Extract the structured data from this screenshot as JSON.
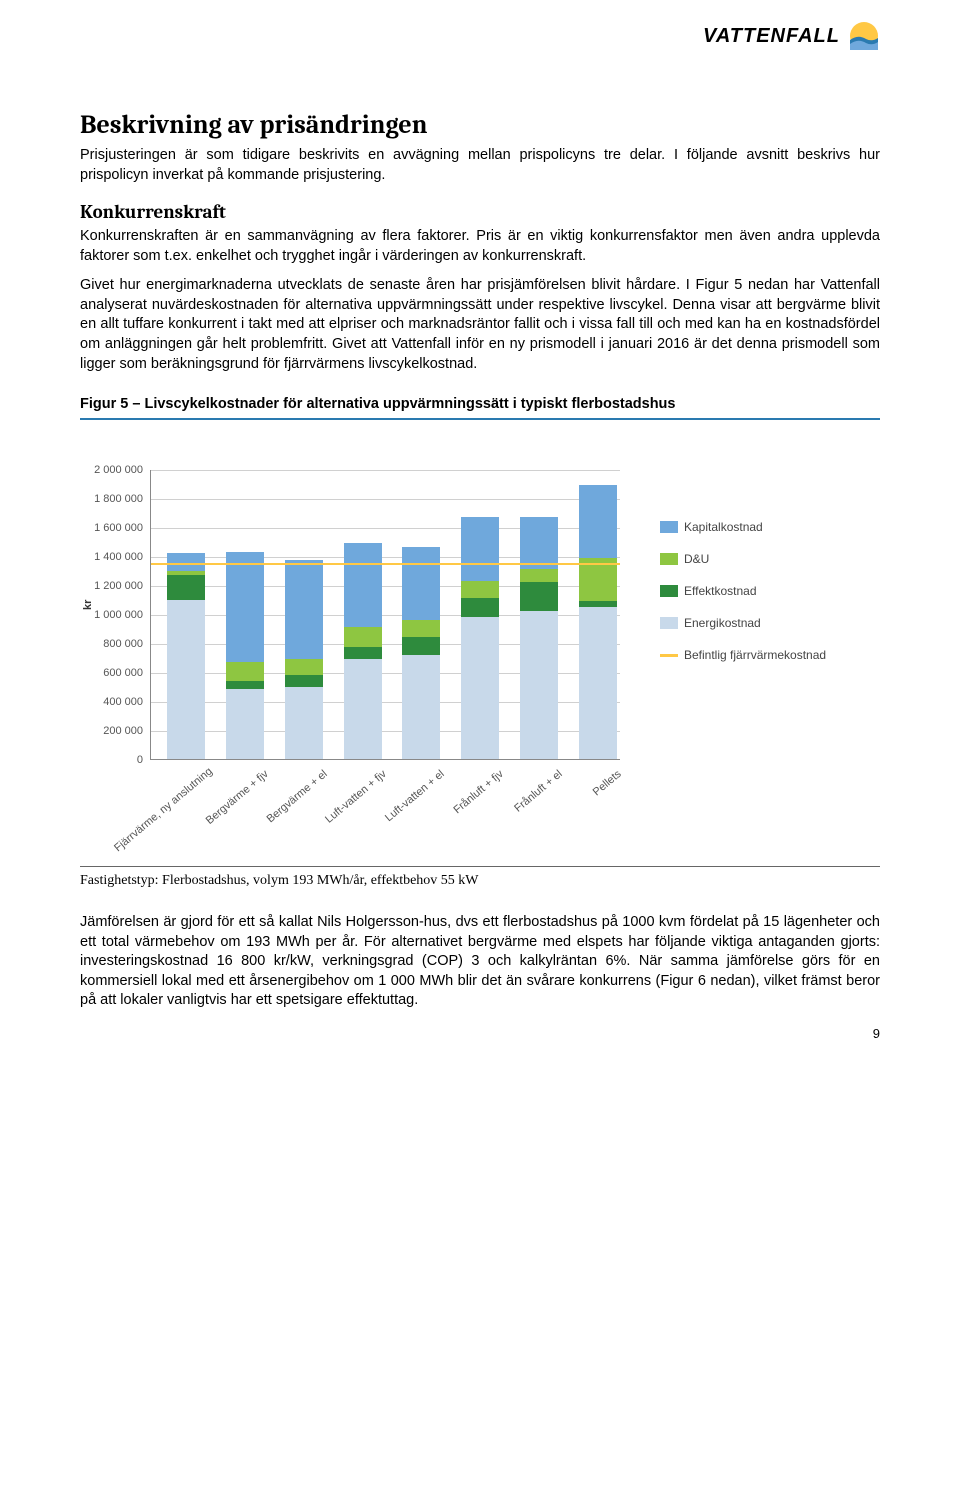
{
  "header": {
    "brand": "VATTENFALL"
  },
  "h1": "Beskrivning av prisändringen",
  "p1": "Prisjusteringen är som tidigare beskrivits en avvägning mellan prispolicyns tre delar. I följande avsnitt beskrivs hur prispolicyn inverkat på kommande prisjustering.",
  "h2": "Konkurrenskraft",
  "p2": "Konkurrenskraften är en sammanvägning av flera faktorer. Pris är en viktig konkurrensfaktor men även andra upplevda faktorer som t.ex. enkelhet och trygghet ingår i värderingen av konkurrenskraft.",
  "p3": "Givet hur energimarknaderna utvecklats de senaste åren har prisjämförelsen blivit hårdare. I Figur 5 nedan har Vattenfall analyserat nuvärdeskostnaden för alternativa uppvärmningssätt under respektive livscykel. Denna visar att bergvärme blivit en allt tuffare konkurrent i takt med att elpriser och marknadsräntor fallit och i vissa fall till och med kan ha en kostnadsfördel om anläggningen går helt problemfritt. Givet att Vattenfall inför en ny prismodell i januari 2016 är det denna prismodell som ligger som beräkningsgrund för fjärrvärmens livscykelkostnad.",
  "figure_caption": "Figur 5 – Livscykelkostnader för alternativa uppvärmningssätt i typiskt flerbostadshus",
  "chart": {
    "ymax": 2000000,
    "ytick_step": 200000,
    "ylabel": "kr",
    "yticks": [
      "0",
      "200 000",
      "400 000",
      "600 000",
      "800 000",
      "1 000 000",
      "1 200 000",
      "1 400 000",
      "1 600 000",
      "1 800 000",
      "2 000 000"
    ],
    "ref_line_value": 1360000,
    "categories": [
      "Fjärrvärme, ny anslutning",
      "Bergvärme + fjv",
      "Bergvärme + el",
      "Luft-vatten + fjv",
      "Luft-vatten + el",
      "Frånluft + fjv",
      "Frånluft + el",
      "Pellets"
    ],
    "stacks": [
      {
        "energi": 1100000,
        "effekt": 170000,
        "du": 30000,
        "kapital": 120000
      },
      {
        "energi": 480000,
        "effekt": 60000,
        "du": 130000,
        "kapital": 760000
      },
      {
        "energi": 500000,
        "effekt": 80000,
        "du": 110000,
        "kapital": 680000
      },
      {
        "energi": 690000,
        "effekt": 80000,
        "du": 140000,
        "kapital": 580000
      },
      {
        "energi": 720000,
        "effekt": 120000,
        "du": 120000,
        "kapital": 500000
      },
      {
        "energi": 980000,
        "effekt": 130000,
        "du": 120000,
        "kapital": 440000
      },
      {
        "energi": 1020000,
        "effekt": 200000,
        "du": 90000,
        "kapital": 360000
      },
      {
        "energi": 1050000,
        "effekt": 40000,
        "du": 300000,
        "kapital": 500000
      }
    ],
    "colors": {
      "kapital": "#6fa8dc",
      "du": "#8ec641",
      "effekt": "#2e8b3d",
      "energi": "#c8d9ea",
      "refline": "#ffc845",
      "grid": "#d0d0d0",
      "axis": "#888888"
    },
    "legend": {
      "kapital": "Kapitalkostnad",
      "du": "D&U",
      "effekt": "Effektkostnad",
      "energi": "Energikostnad",
      "refline": "Befintlig fjärrvärmekostnad"
    }
  },
  "caption_below": "Fastighetstyp: Flerbostadshus, volym 193 MWh/år, effektbehov 55 kW",
  "p4": "Jämförelsen är gjord för ett så kallat Nils Holgersson-hus, dvs ett flerbostadshus på 1000 kvm fördelat på 15 lägenheter och ett total värmebehov om 193 MWh per år. För alternativet bergvärme med elspets har följande viktiga antaganden gjorts: investeringskostnad 16 800 kr/kW, verkningsgrad (COP) 3 och kalkylräntan 6%. När samma jämförelse görs för en kommersiell lokal med ett årsenergibehov om 1 000 MWh blir det än svårare konkurrens (Figur 6 nedan), vilket främst beror på att lokaler vanligtvis har ett spetsigare effektuttag.",
  "page_number": "9"
}
